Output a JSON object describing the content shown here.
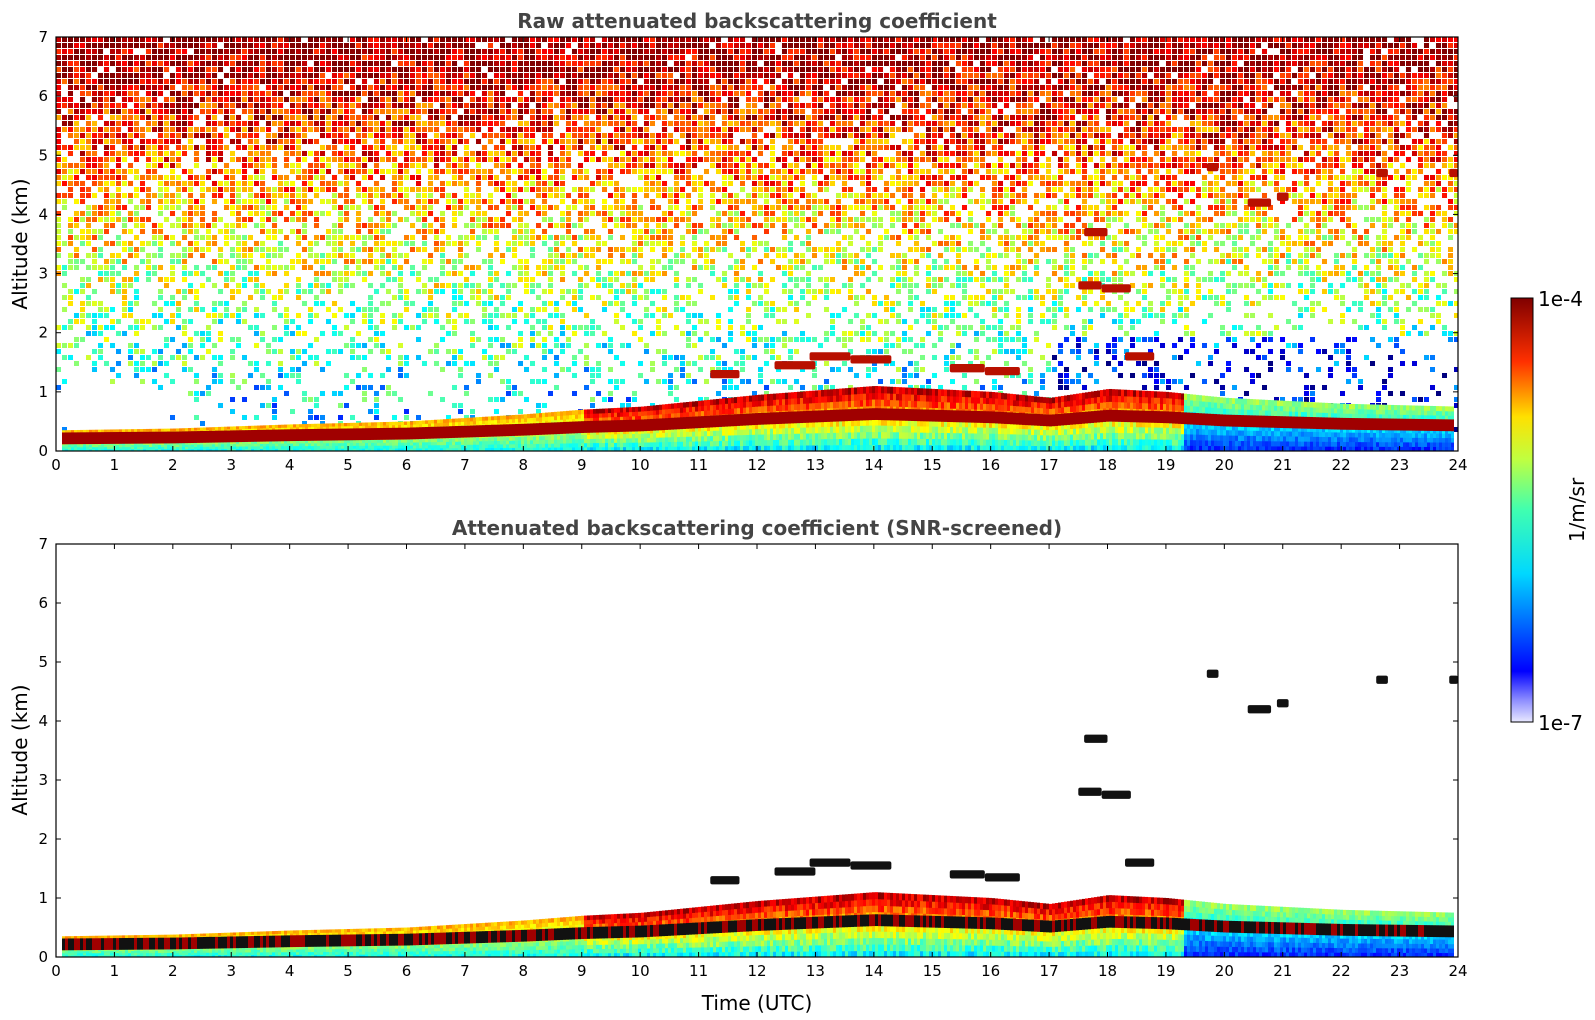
{
  "chart_data": [
    {
      "type": "heatmap",
      "title": "Raw attenuated backscattering coefficient",
      "xlabel": "",
      "ylabel": "Altitude (km)",
      "xlim": [
        0,
        24
      ],
      "ylim": [
        0,
        7
      ],
      "xticks": [
        0,
        1,
        2,
        3,
        4,
        5,
        6,
        7,
        8,
        9,
        10,
        11,
        12,
        13,
        14,
        15,
        16,
        17,
        18,
        19,
        20,
        21,
        22,
        23,
        24
      ],
      "yticks": [
        0,
        1,
        2,
        3,
        4,
        5,
        6,
        7
      ],
      "grid": false,
      "noise": "dense",
      "boundary_layer": [
        [
          0,
          0.35
        ],
        [
          2,
          0.38
        ],
        [
          4,
          0.45
        ],
        [
          6,
          0.5
        ],
        [
          8,
          0.62
        ],
        [
          9,
          0.7
        ],
        [
          10,
          0.75
        ],
        [
          12,
          0.95
        ],
        [
          14,
          1.1
        ],
        [
          16,
          1.0
        ],
        [
          17,
          0.9
        ],
        [
          18,
          1.05
        ],
        [
          19,
          1.0
        ],
        [
          20,
          0.9
        ],
        [
          22,
          0.8
        ],
        [
          24,
          0.75
        ]
      ],
      "cloud_layers": [
        {
          "x0": 11.2,
          "x1": 11.7,
          "y": 1.3
        },
        {
          "x0": 12.3,
          "x1": 13.0,
          "y": 1.45
        },
        {
          "x0": 12.9,
          "x1": 13.6,
          "y": 1.6
        },
        {
          "x0": 13.6,
          "x1": 14.3,
          "y": 1.55
        },
        {
          "x0": 15.3,
          "x1": 15.9,
          "y": 1.4
        },
        {
          "x0": 15.9,
          "x1": 16.5,
          "y": 1.35
        },
        {
          "x0": 17.5,
          "x1": 17.9,
          "y": 2.8
        },
        {
          "x0": 17.9,
          "x1": 18.4,
          "y": 2.75
        },
        {
          "x0": 17.6,
          "x1": 18.0,
          "y": 3.7
        },
        {
          "x0": 18.3,
          "x1": 18.8,
          "y": 1.6
        },
        {
          "x0": 19.7,
          "x1": 19.9,
          "y": 4.8
        },
        {
          "x0": 20.4,
          "x1": 20.8,
          "y": 4.2
        },
        {
          "x0": 20.9,
          "x1": 21.1,
          "y": 4.3
        },
        {
          "x0": 22.6,
          "x1": 22.8,
          "y": 4.7
        },
        {
          "x0": 23.85,
          "x1": 24.0,
          "y": 4.7
        }
      ]
    },
    {
      "type": "heatmap",
      "title": "Attenuated backscattering coefficient (SNR-screened)",
      "xlabel": "Time (UTC)",
      "ylabel": "Altitude (km)",
      "xlim": [
        0,
        24
      ],
      "ylim": [
        0,
        7
      ],
      "xticks": [
        0,
        1,
        2,
        3,
        4,
        5,
        6,
        7,
        8,
        9,
        10,
        11,
        12,
        13,
        14,
        15,
        16,
        17,
        18,
        19,
        20,
        21,
        22,
        23,
        24
      ],
      "yticks": [
        0,
        1,
        2,
        3,
        4,
        5,
        6,
        7
      ],
      "grid": false,
      "noise": "none",
      "boundary_layer": [
        [
          0,
          0.35
        ],
        [
          2,
          0.38
        ],
        [
          4,
          0.45
        ],
        [
          6,
          0.5
        ],
        [
          8,
          0.62
        ],
        [
          9,
          0.7
        ],
        [
          10,
          0.75
        ],
        [
          12,
          0.95
        ],
        [
          14,
          1.1
        ],
        [
          16,
          1.0
        ],
        [
          17,
          0.9
        ],
        [
          18,
          1.05
        ],
        [
          19,
          1.0
        ],
        [
          20,
          0.9
        ],
        [
          22,
          0.8
        ],
        [
          24,
          0.75
        ]
      ],
      "cloud_layers": [
        {
          "x0": 11.2,
          "x1": 11.7,
          "y": 1.3
        },
        {
          "x0": 12.3,
          "x1": 13.0,
          "y": 1.45
        },
        {
          "x0": 12.9,
          "x1": 13.6,
          "y": 1.6
        },
        {
          "x0": 13.6,
          "x1": 14.3,
          "y": 1.55
        },
        {
          "x0": 15.3,
          "x1": 15.9,
          "y": 1.4
        },
        {
          "x0": 15.9,
          "x1": 16.5,
          "y": 1.35
        },
        {
          "x0": 17.5,
          "x1": 17.9,
          "y": 2.8
        },
        {
          "x0": 17.9,
          "x1": 18.4,
          "y": 2.75
        },
        {
          "x0": 17.6,
          "x1": 18.0,
          "y": 3.7
        },
        {
          "x0": 18.3,
          "x1": 18.8,
          "y": 1.6
        },
        {
          "x0": 19.7,
          "x1": 19.9,
          "y": 4.8
        },
        {
          "x0": 20.4,
          "x1": 20.8,
          "y": 4.2
        },
        {
          "x0": 20.9,
          "x1": 21.1,
          "y": 4.3
        },
        {
          "x0": 22.6,
          "x1": 22.8,
          "y": 4.7
        },
        {
          "x0": 23.85,
          "x1": 24.0,
          "y": 4.7
        }
      ]
    }
  ],
  "colorbar": {
    "max_label": "1e-4",
    "min_label": "1e-7",
    "unit_label": "1/m/sr",
    "colormap": "jet",
    "scale": "log",
    "range": [
      1e-07,
      0.0001
    ]
  }
}
